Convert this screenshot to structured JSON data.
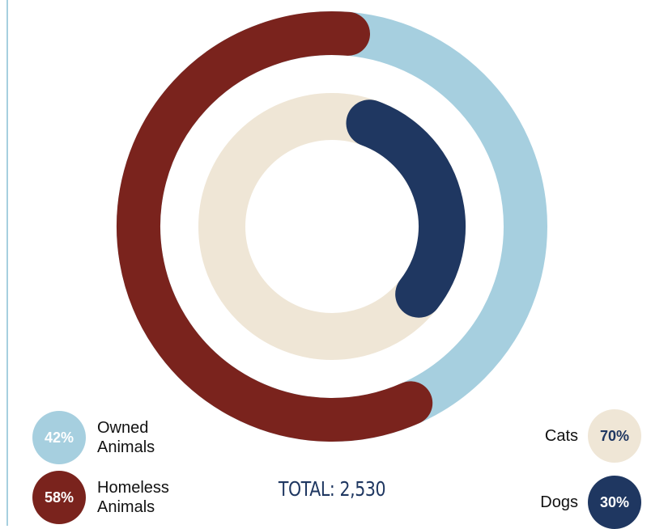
{
  "chart_data": {
    "type": "donut",
    "rings": [
      {
        "ring": "outer",
        "series": [
          {
            "pct_label": "42%",
            "name_line1": "Owned",
            "name_line2": "Animals",
            "value": 42,
            "color": "#a6cfdf",
            "text_color": "#ffffff"
          },
          {
            "pct_label": "58%",
            "name_line1": "Homeless",
            "name_line2": "Animals",
            "value": 58,
            "color": "#7a231d",
            "text_color": "#ffffff"
          }
        ]
      },
      {
        "ring": "inner",
        "series": [
          {
            "pct_label": "70%",
            "name": "Cats",
            "value": 70,
            "color": "#efe6d6",
            "text_color": "#1f3761"
          },
          {
            "pct_label": "30%",
            "name": "Dogs",
            "value": 30,
            "color": "#1f3761",
            "text_color": "#ffffff"
          }
        ]
      }
    ],
    "total_label": "TOTAL: 2,530",
    "total_color": "#1f3761",
    "legend_placement": "bottom-left and bottom-right"
  }
}
